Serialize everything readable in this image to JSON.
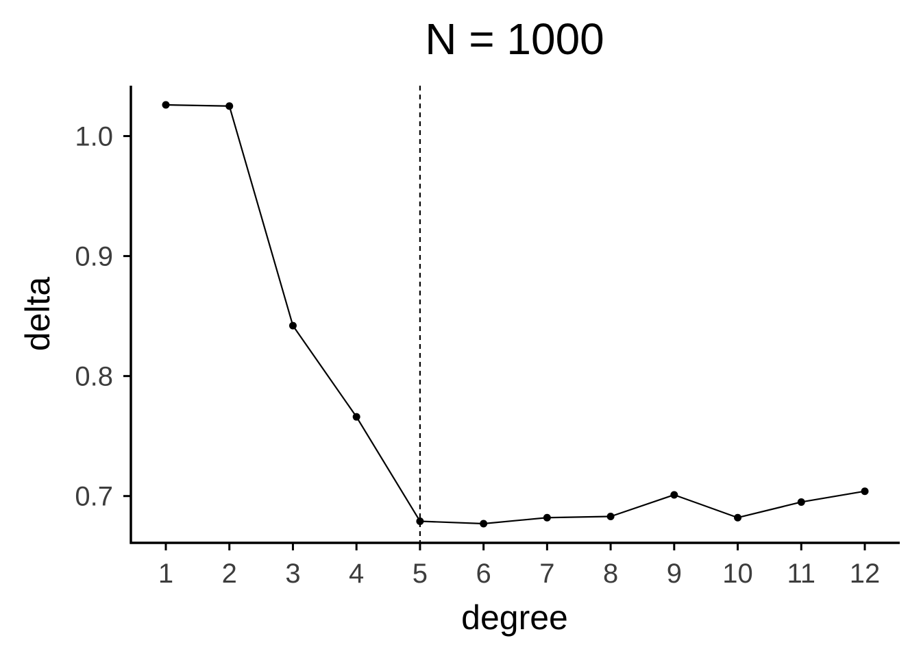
{
  "chart_data": {
    "type": "line",
    "title": "N = 1000",
    "xlabel": "degree",
    "ylabel": "delta",
    "x": [
      1,
      2,
      3,
      4,
      5,
      6,
      7,
      8,
      9,
      10,
      11,
      12
    ],
    "series": [
      {
        "values": [
          1.026,
          1.025,
          0.842,
          0.766,
          0.679,
          0.677,
          0.682,
          0.683,
          0.701,
          0.682,
          0.695,
          0.704
        ]
      }
    ],
    "x_ticks": [
      "1",
      "2",
      "3",
      "4",
      "5",
      "6",
      "7",
      "8",
      "9",
      "10",
      "11",
      "12"
    ],
    "y_ticks": [
      "0.7",
      "0.8",
      "0.9",
      "1.0"
    ],
    "y_tick_values": [
      0.7,
      0.8,
      0.9,
      1.0
    ],
    "xlim": [
      0.45,
      12.55
    ],
    "ylim": [
      0.661,
      1.042
    ],
    "reference_line": {
      "orientation": "vertical",
      "x": 5,
      "style": "dashed"
    },
    "grid": false,
    "legend": "none",
    "colors": {
      "line": "#000000",
      "points": "#000000",
      "axis": "#000000",
      "tick_labels": "#3d3d3d"
    }
  }
}
